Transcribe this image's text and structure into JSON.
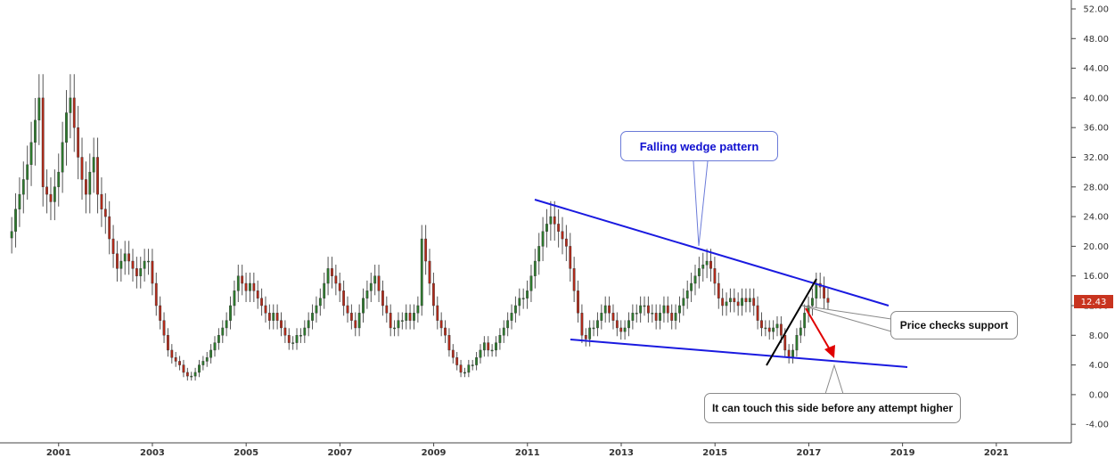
{
  "chart_data": {
    "type": "candlestick",
    "y_axis": {
      "ylim": [
        -6.5,
        53.2
      ],
      "ticks": [
        "52.00",
        "48.00",
        "44.00",
        "40.00",
        "36.00",
        "32.00",
        "28.00",
        "24.00",
        "20.00",
        "16.00",
        "12.00",
        "8.00",
        "4.00",
        "0.00",
        "-4.00"
      ],
      "position": "right"
    },
    "x_axis": {
      "xlim": [
        1999.75,
        2022.6
      ],
      "ticks": [
        "2001",
        "2003",
        "2005",
        "2007",
        "2009",
        "2011",
        "2013",
        "2015",
        "2017",
        "2019",
        "2021"
      ]
    },
    "last_price": "12.43",
    "colors": {
      "up": "#2d7a2d",
      "down": "#b22a1a",
      "wedge": "#1a1ae0",
      "support": "#000000",
      "arrow": "#e00000",
      "last_price_bg": "#c8341f"
    },
    "candles": {
      "start": 2000.0,
      "step": 0.0833,
      "closes": [
        22,
        25,
        27,
        29,
        31,
        34,
        37,
        40,
        28,
        27,
        26,
        28,
        30,
        34,
        38,
        40,
        36,
        32,
        29,
        27,
        30,
        32,
        27,
        25,
        24,
        21,
        19,
        17,
        18,
        19,
        18,
        17,
        16,
        17,
        18,
        18,
        15,
        12,
        10,
        8,
        6,
        5,
        4.5,
        4,
        3,
        2.5,
        2.5,
        3,
        4,
        4.5,
        5,
        6,
        7,
        8,
        9,
        10,
        12,
        14,
        16,
        15,
        14,
        15,
        14,
        13,
        12,
        11,
        10,
        11,
        10,
        9,
        8,
        7,
        7,
        8,
        8,
        9,
        10,
        11,
        12,
        13,
        15,
        17,
        16,
        15,
        14,
        12,
        11,
        10,
        9,
        11,
        13,
        14,
        15,
        16,
        14,
        12,
        11,
        9,
        9,
        10,
        10,
        11,
        10,
        11,
        12,
        21,
        18,
        15,
        12,
        10,
        9,
        8,
        6,
        5,
        4,
        3,
        3,
        4,
        4,
        5,
        6,
        7,
        6,
        6,
        7,
        8,
        9,
        10,
        11,
        12,
        13,
        13,
        14,
        16,
        18,
        20,
        22,
        23,
        24,
        23,
        22,
        21,
        20,
        17,
        14,
        11,
        8,
        7.5,
        9,
        9,
        10,
        11,
        12,
        11,
        10,
        9,
        8.5,
        9,
        10,
        11,
        11,
        12,
        12,
        11,
        11,
        10,
        11,
        12,
        11,
        10,
        11,
        12,
        13,
        14,
        15,
        16,
        17,
        17.5,
        18,
        17,
        15,
        13,
        12,
        12.5,
        13,
        12.5,
        12,
        13,
        12.5,
        13,
        12,
        10,
        9,
        9,
        8.5,
        9,
        9.5,
        8,
        6,
        5,
        6,
        8,
        9,
        11,
        12,
        13,
        15,
        14.5,
        13,
        12.43
      ]
    },
    "annotations": {
      "wedge_label": "Falling wedge pattern",
      "support_label": "Price checks support",
      "touch_label": "It can touch this side before any attempt higher"
    }
  }
}
